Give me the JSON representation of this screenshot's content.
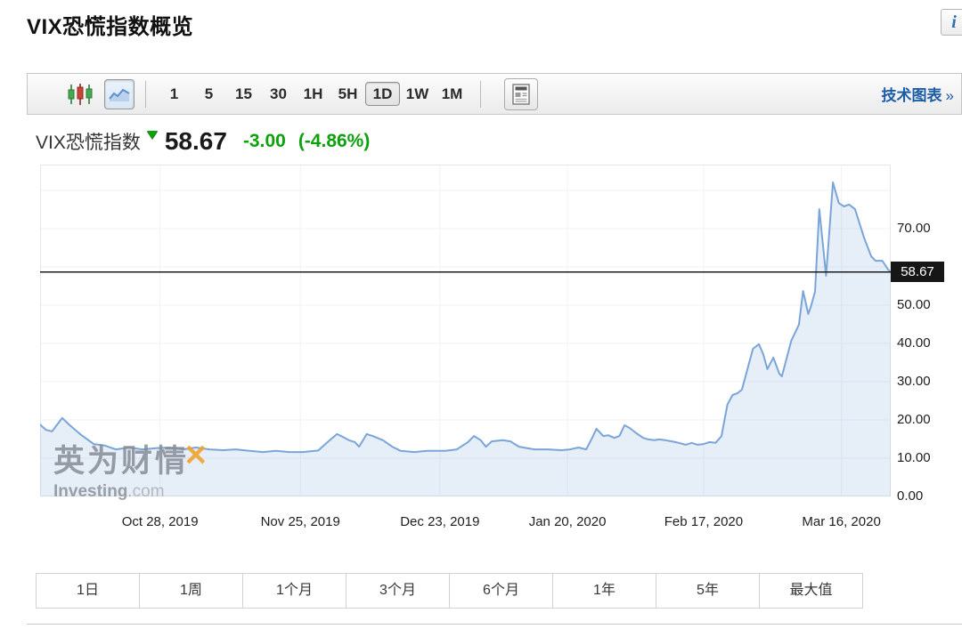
{
  "page": {
    "title": "VIX恐慌指数概览"
  },
  "header": {
    "info_icon_glyph": "i"
  },
  "toolbar": {
    "chart_types": [
      {
        "name": "candlestick-chart",
        "selected": false
      },
      {
        "name": "line-chart",
        "selected": true
      }
    ],
    "intervals": [
      "1",
      "5",
      "15",
      "30",
      "1H",
      "5H",
      "1D",
      "1W",
      "1M"
    ],
    "selected_interval": "1D",
    "news_icon": "news-panel-icon",
    "link": {
      "label": "技术图表",
      "arrow": "»"
    }
  },
  "quote": {
    "name": "VIX恐慌指数",
    "direction": "down",
    "last": "58.67",
    "change": "-3.00",
    "change_pct": "(-4.86%)",
    "down_color": "#0da10d"
  },
  "watermark": {
    "cn": "英为财情",
    "x_mark": "✕",
    "en": "Investing",
    "domain": ".com"
  },
  "chart_data": {
    "type": "area",
    "title": "VIX恐慌指数 1D",
    "ylim": [
      0,
      86.74
    ],
    "grid_values": [
      10,
      20,
      30,
      40,
      50,
      60,
      70,
      80
    ],
    "y_ticks": [
      {
        "value": 70,
        "label": "70.00"
      },
      {
        "value": 50,
        "label": "50.00"
      },
      {
        "value": 40,
        "label": "40.00"
      },
      {
        "value": 30,
        "label": "30.00"
      },
      {
        "value": 20,
        "label": "20.00"
      },
      {
        "value": 10,
        "label": "10.00"
      },
      {
        "value": 0,
        "label": "0.00"
      }
    ],
    "last_price": 58.67,
    "last_price_label": "58.67",
    "x_ticks": [
      {
        "t": 0.141,
        "label": "Oct 28, 2019"
      },
      {
        "t": 0.306,
        "label": "Nov 25, 2019"
      },
      {
        "t": 0.47,
        "label": "Dec 23, 2019"
      },
      {
        "t": 0.62,
        "label": "Jan 20, 2020"
      },
      {
        "t": 0.78,
        "label": "Feb 17, 2020"
      },
      {
        "t": 0.942,
        "label": "Mar 16, 2020"
      }
    ],
    "series": [
      {
        "name": "VIX恐慌指数",
        "points": [
          [
            0.0,
            18.8
          ],
          [
            0.007,
            17.4
          ],
          [
            0.014,
            17.0
          ],
          [
            0.026,
            20.5
          ],
          [
            0.035,
            18.6
          ],
          [
            0.047,
            16.3
          ],
          [
            0.063,
            13.7
          ],
          [
            0.076,
            13.3
          ],
          [
            0.089,
            12.3
          ],
          [
            0.105,
            12.8
          ],
          [
            0.12,
            12.3
          ],
          [
            0.136,
            12.6
          ],
          [
            0.152,
            12.8
          ],
          [
            0.168,
            12.3
          ],
          [
            0.183,
            12.8
          ],
          [
            0.199,
            12.3
          ],
          [
            0.215,
            12.1
          ],
          [
            0.23,
            12.3
          ],
          [
            0.246,
            11.9
          ],
          [
            0.262,
            11.6
          ],
          [
            0.277,
            11.9
          ],
          [
            0.293,
            11.6
          ],
          [
            0.309,
            11.6
          ],
          [
            0.327,
            12.0
          ],
          [
            0.337,
            14.0
          ],
          [
            0.349,
            16.3
          ],
          [
            0.354,
            15.8
          ],
          [
            0.363,
            14.7
          ],
          [
            0.37,
            14.2
          ],
          [
            0.375,
            13.0
          ],
          [
            0.384,
            16.3
          ],
          [
            0.391,
            15.8
          ],
          [
            0.403,
            14.7
          ],
          [
            0.414,
            13.0
          ],
          [
            0.424,
            11.9
          ],
          [
            0.44,
            11.6
          ],
          [
            0.455,
            11.9
          ],
          [
            0.476,
            11.9
          ],
          [
            0.49,
            12.3
          ],
          [
            0.503,
            14.2
          ],
          [
            0.51,
            15.8
          ],
          [
            0.518,
            14.7
          ],
          [
            0.524,
            13.0
          ],
          [
            0.531,
            14.4
          ],
          [
            0.544,
            14.7
          ],
          [
            0.553,
            14.4
          ],
          [
            0.563,
            13.0
          ],
          [
            0.581,
            12.3
          ],
          [
            0.597,
            12.3
          ],
          [
            0.613,
            12.1
          ],
          [
            0.623,
            12.3
          ],
          [
            0.633,
            12.8
          ],
          [
            0.642,
            12.3
          ],
          [
            0.649,
            15.3
          ],
          [
            0.654,
            17.7
          ],
          [
            0.662,
            15.8
          ],
          [
            0.668,
            16.0
          ],
          [
            0.675,
            15.3
          ],
          [
            0.681,
            15.8
          ],
          [
            0.687,
            18.6
          ],
          [
            0.693,
            17.9
          ],
          [
            0.701,
            16.5
          ],
          [
            0.709,
            15.3
          ],
          [
            0.715,
            14.9
          ],
          [
            0.722,
            14.7
          ],
          [
            0.728,
            14.9
          ],
          [
            0.735,
            14.7
          ],
          [
            0.743,
            14.4
          ],
          [
            0.751,
            14.0
          ],
          [
            0.759,
            13.5
          ],
          [
            0.766,
            14.0
          ],
          [
            0.773,
            13.5
          ],
          [
            0.78,
            13.7
          ],
          [
            0.787,
            14.2
          ],
          [
            0.794,
            14.0
          ],
          [
            0.801,
            15.8
          ],
          [
            0.808,
            24.0
          ],
          [
            0.814,
            26.5
          ],
          [
            0.82,
            27.0
          ],
          [
            0.825,
            27.9
          ],
          [
            0.838,
            38.6
          ],
          [
            0.845,
            39.8
          ],
          [
            0.85,
            37.2
          ],
          [
            0.855,
            33.3
          ],
          [
            0.862,
            36.3
          ],
          [
            0.869,
            32.1
          ],
          [
            0.872,
            31.4
          ],
          [
            0.883,
            40.7
          ],
          [
            0.892,
            44.9
          ],
          [
            0.897,
            53.7
          ],
          [
            0.903,
            47.7
          ],
          [
            0.906,
            49.5
          ],
          [
            0.911,
            53.5
          ],
          [
            0.916,
            75.1
          ],
          [
            0.924,
            57.7
          ],
          [
            0.932,
            82.1
          ],
          [
            0.939,
            76.7
          ],
          [
            0.945,
            75.8
          ],
          [
            0.951,
            76.3
          ],
          [
            0.958,
            75.1
          ],
          [
            0.969,
            67.4
          ],
          [
            0.977,
            62.8
          ],
          [
            0.982,
            61.6
          ],
          [
            0.99,
            61.6
          ],
          [
            0.997,
            59.3
          ],
          [
            1.0,
            58.67
          ]
        ]
      }
    ],
    "colors": {
      "line": "#7aa5d8",
      "fill": "rgba(140,178,220,0.22)",
      "grid": "#edf0f5",
      "vgrid": "#f0f3f7",
      "border": "#e2e6ee",
      "price_line": "#1b1b1b"
    },
    "legend": "none",
    "grid": "on"
  },
  "periods": {
    "items": [
      "1日",
      "1周",
      "1个月",
      "3个月",
      "6个月",
      "1年",
      "5年",
      "最大值"
    ]
  },
  "colors": {
    "link_blue": "#1a5ca8",
    "down_green": "#0da10d"
  }
}
